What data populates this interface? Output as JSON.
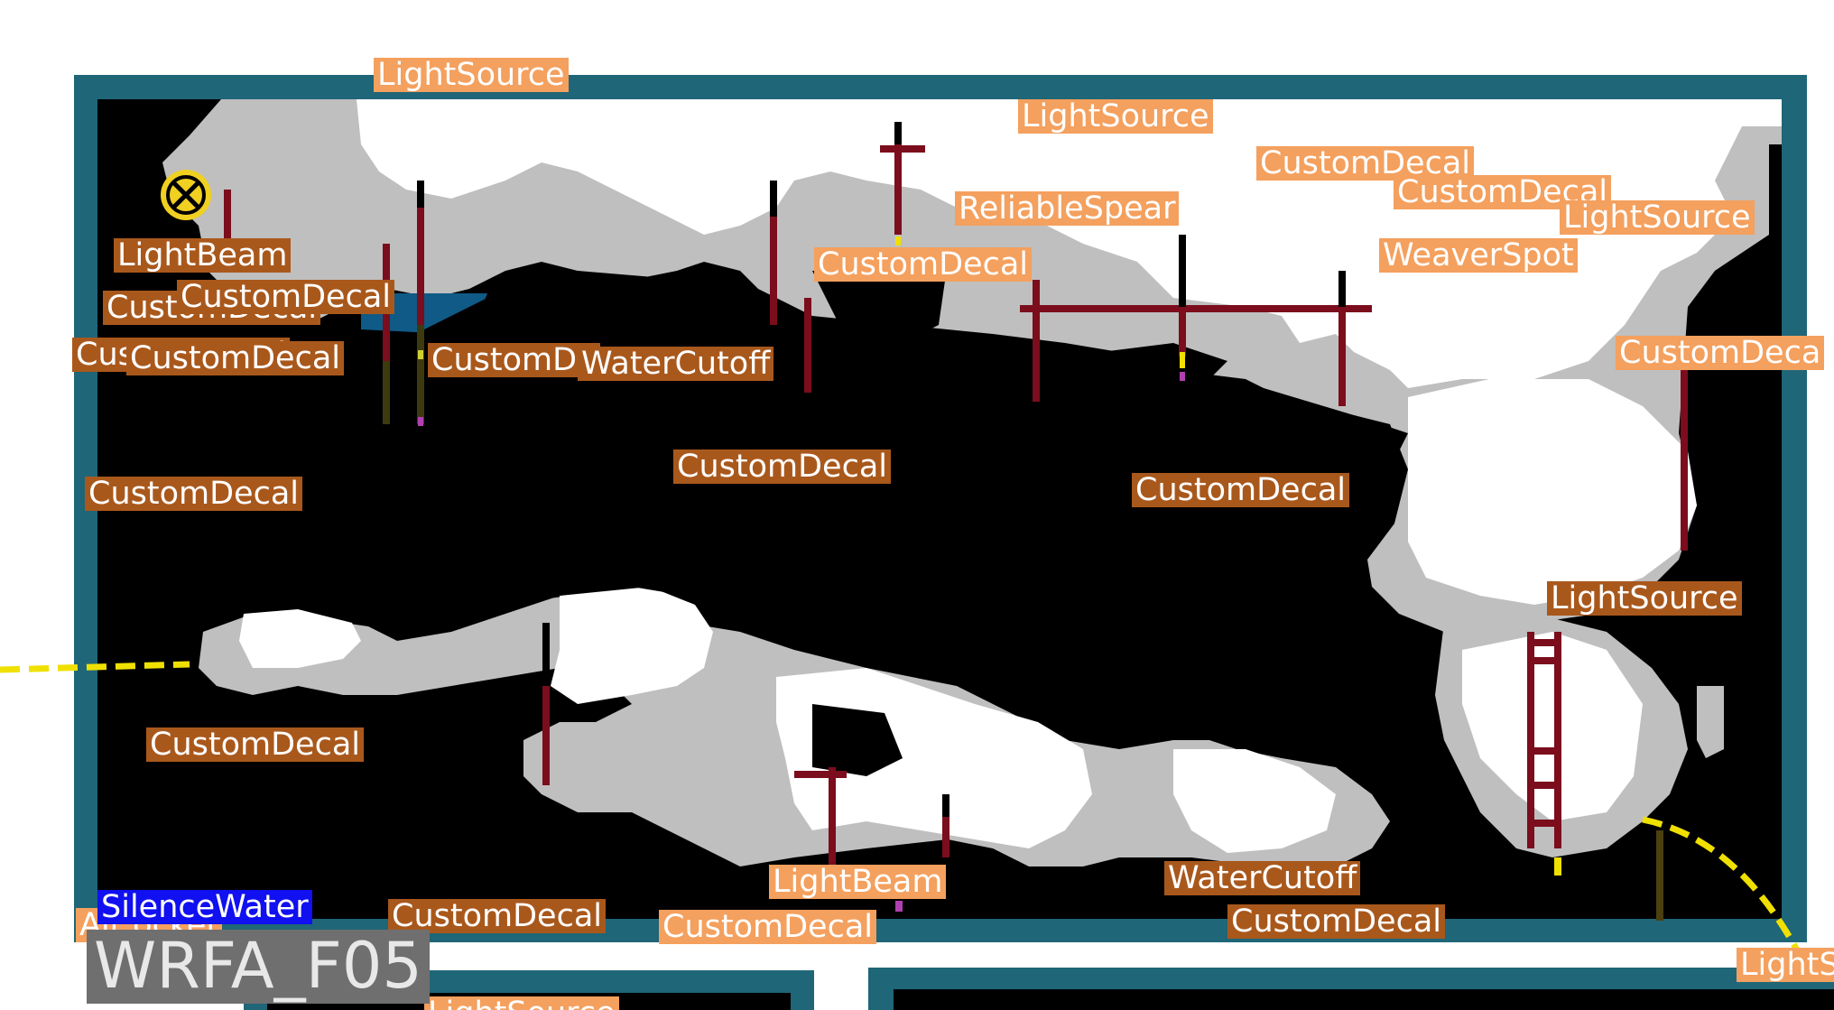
{
  "room": {
    "name": "WRFA_F05"
  },
  "colors": {
    "border": "#1f6678",
    "solid": "#000000",
    "background_wall": "#bfbfbf",
    "air": "#ffffff",
    "pole": "#7b0d1c",
    "water": "#0f5a86",
    "shortcut_path": "#f0e000"
  },
  "labels": {
    "l1": "LightSource",
    "l2": "LightSource",
    "l3": "CustomDecal",
    "l4": "CustomDecal",
    "l5": "LightSource",
    "l6": "ReliableSpear",
    "l7": "WeaverSpot",
    "l8": "CustomDecal",
    "l9": "LightBeam",
    "l10": "CustomDecal",
    "l11": "CustomDecal",
    "l12": "CustomDecal",
    "l13": "CustomDecal",
    "l14": "CustomDecal",
    "l15": "CustomDe",
    "l16": "WaterCutoff",
    "l17": "CustomDeca",
    "l18": "CustomDecal",
    "l19": "CustomDecal",
    "l20": "CustomDecal",
    "l21": "LightSource",
    "l22": "CustomDecal",
    "l23": "LightBeam",
    "l24": "WaterCutoff",
    "l25": "SilenceWater",
    "l26": "Air ocket",
    "l27": "CustomDecal",
    "l28": "CustomDecal",
    "l29": "CustomDecal",
    "l30": "LightS",
    "l31": "LightSource"
  },
  "icons": {
    "creature_den": "den-icon"
  }
}
